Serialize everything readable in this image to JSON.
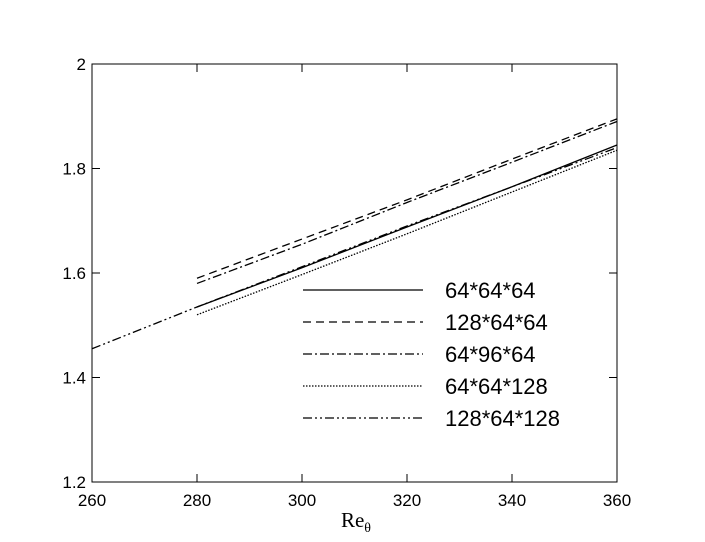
{
  "chart_data": {
    "type": "line",
    "x_label": "Re",
    "x_label_sub": "θ",
    "x": [
      260,
      280,
      300,
      320,
      340,
      360
    ],
    "series": [
      {
        "name": "64*64*64",
        "color": "#000000",
        "dash": "solid",
        "values": [
          null,
          1.535,
          1.61,
          1.688,
          1.765,
          1.845
        ]
      },
      {
        "name": "128*64*64",
        "color": "#000000",
        "dash": "dashed",
        "values": [
          null,
          1.59,
          1.665,
          1.74,
          1.818,
          1.895
        ]
      },
      {
        "name": "64*96*64",
        "color": "#000000",
        "dash": "dashdot",
        "values": [
          null,
          1.58,
          1.655,
          1.735,
          1.812,
          1.89
        ]
      },
      {
        "name": "64*64*128",
        "color": "#000000",
        "dash": "dotted",
        "values": [
          null,
          1.52,
          1.597,
          1.675,
          1.755,
          1.835
        ]
      },
      {
        "name": "128*64*128",
        "color": "#000000",
        "dash": "dashdotdot",
        "values": [
          1.455,
          1.535,
          1.612,
          1.69,
          1.765,
          1.84
        ]
      }
    ],
    "xlim": [
      260,
      360
    ],
    "xticks": [
      260,
      280,
      300,
      320,
      340,
      360
    ],
    "ylim": [
      1.2,
      2
    ],
    "yticks": [
      1.2,
      1.4,
      1.6,
      1.8,
      2
    ],
    "grid": false
  }
}
